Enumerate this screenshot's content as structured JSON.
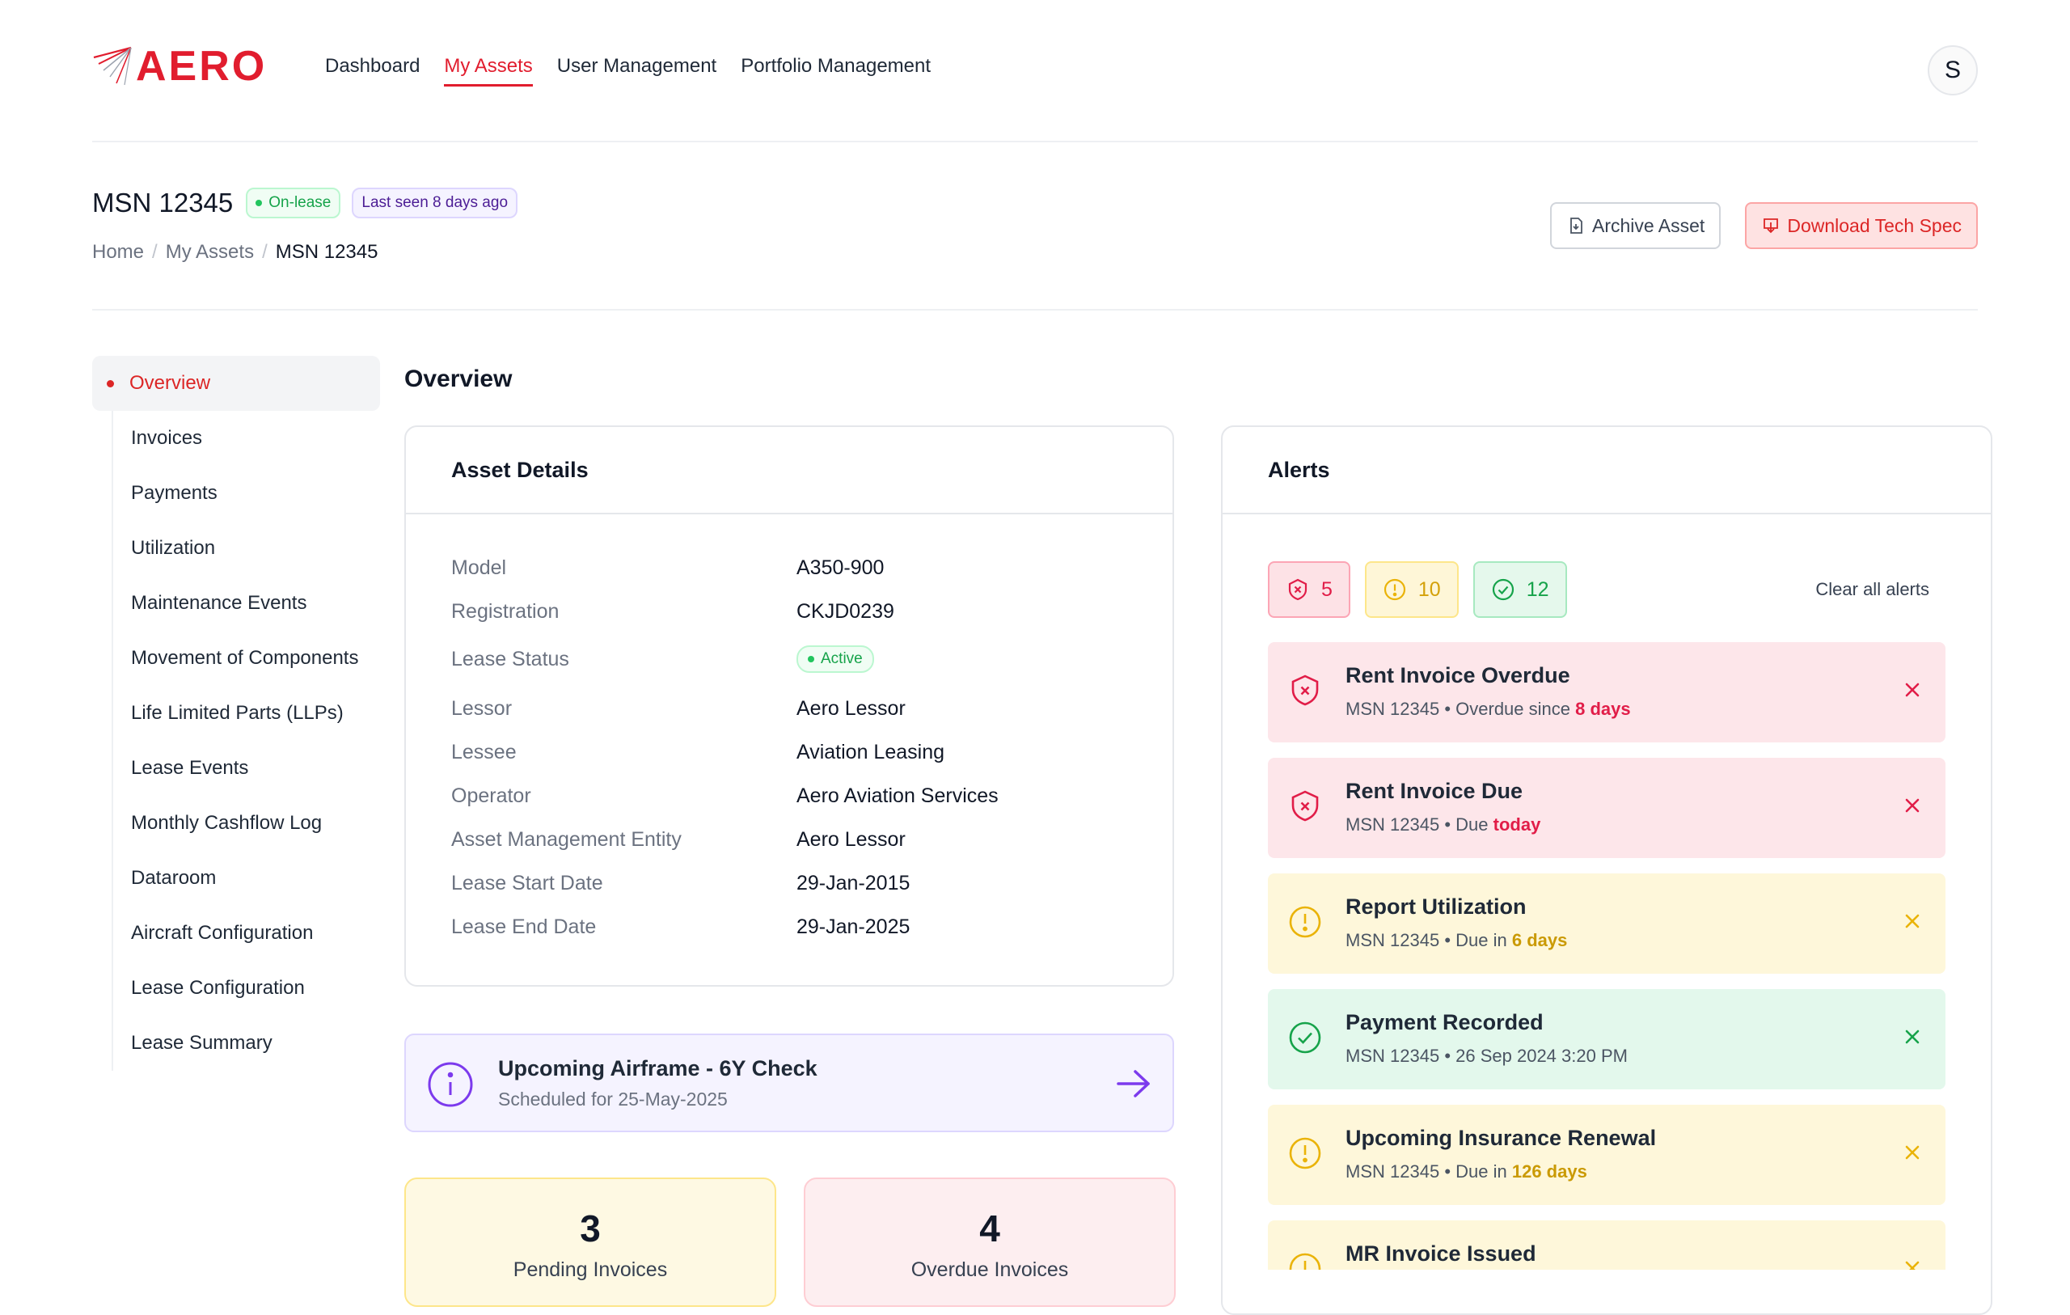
{
  "brand": {
    "name": "AERO",
    "accent": "#e11d2e"
  },
  "nav": {
    "items": [
      {
        "label": "Dashboard"
      },
      {
        "label": "My Assets"
      },
      {
        "label": "User Management"
      },
      {
        "label": "Portfolio Management"
      }
    ],
    "active": "My Assets"
  },
  "user": {
    "initial": "S"
  },
  "header": {
    "title": "MSN 12345",
    "status_badge": "On-lease",
    "last_seen_badge": "Last seen 8 days ago",
    "breadcrumb": [
      "Home",
      "My Assets",
      "MSN 12345"
    ],
    "breadcrumb_sep": "/",
    "archive_label": "Archive Asset",
    "download_label": "Download Tech Spec"
  },
  "sidebar": {
    "items": [
      {
        "label": "Overview"
      },
      {
        "label": "Invoices"
      },
      {
        "label": "Payments"
      },
      {
        "label": "Utilization"
      },
      {
        "label": "Maintenance Events"
      },
      {
        "label": "Movement of Components"
      },
      {
        "label": "Life Limited Parts (LLPs)"
      },
      {
        "label": "Lease Events"
      },
      {
        "label": "Monthly Cashflow Log"
      },
      {
        "label": "Dataroom"
      },
      {
        "label": "Aircraft Configuration"
      },
      {
        "label": "Lease Configuration"
      },
      {
        "label": "Lease Summary"
      }
    ]
  },
  "main": {
    "section_title": "Overview",
    "asset_details": {
      "title": "Asset Details",
      "rows": [
        {
          "label": "Model",
          "value": "A350-900"
        },
        {
          "label": "Registration",
          "value": "CKJD0239"
        },
        {
          "label": "Lease Status",
          "value": "Active"
        },
        {
          "label": "Lessor",
          "value": "Aero Lessor"
        },
        {
          "label": "Lessee",
          "value": "Aviation Leasing"
        },
        {
          "label": "Operator",
          "value": "Aero Aviation Services"
        },
        {
          "label": "Asset Management Entity",
          "value": "Aero Lessor"
        },
        {
          "label": "Lease Start Date",
          "value": "29-Jan-2015"
        },
        {
          "label": "Lease End Date",
          "value": "29-Jan-2025"
        }
      ]
    },
    "upcoming": {
      "title": "Upcoming Airframe - 6Y Check",
      "subtitle": "Scheduled for 25-May-2025",
      "icon": "info-icon"
    },
    "stats": [
      {
        "value": "3",
        "label": "Pending Invoices"
      },
      {
        "value": "4",
        "label": "Overdue Invoices"
      }
    ]
  },
  "alerts": {
    "title": "Alerts",
    "counts": {
      "critical": "5",
      "warning": "10",
      "success": "12"
    },
    "clear_label": "Clear all alerts",
    "items": [
      {
        "type": "critical",
        "title": "Rent Invoice Overdue",
        "msn": "MSN 12345",
        "sep": "•",
        "text": "Overdue since",
        "highlight": "8 days"
      },
      {
        "type": "critical",
        "title": "Rent Invoice Due",
        "msn": "MSN 12345",
        "sep": "•",
        "text": "Due",
        "highlight": "today"
      },
      {
        "type": "warning",
        "title": "Report Utilization",
        "msn": "MSN 12345",
        "sep": "•",
        "text": "Due in",
        "highlight": "6 days"
      },
      {
        "type": "success",
        "title": "Payment Recorded",
        "msn": "MSN 12345",
        "sep": "•",
        "text": "26 Sep 2024 3:20 PM",
        "highlight": ""
      },
      {
        "type": "warning",
        "title": "Upcoming Insurance Renewal",
        "msn": "MSN 12345",
        "sep": "•",
        "text": "Due in",
        "highlight": "126 days"
      },
      {
        "type": "warning",
        "title": "MR Invoice Issued",
        "msn": "",
        "sep": "",
        "text": "",
        "highlight": ""
      }
    ],
    "colors": {
      "critical": "#e11d48",
      "warning": "#eab308",
      "success": "#16a34a"
    }
  }
}
